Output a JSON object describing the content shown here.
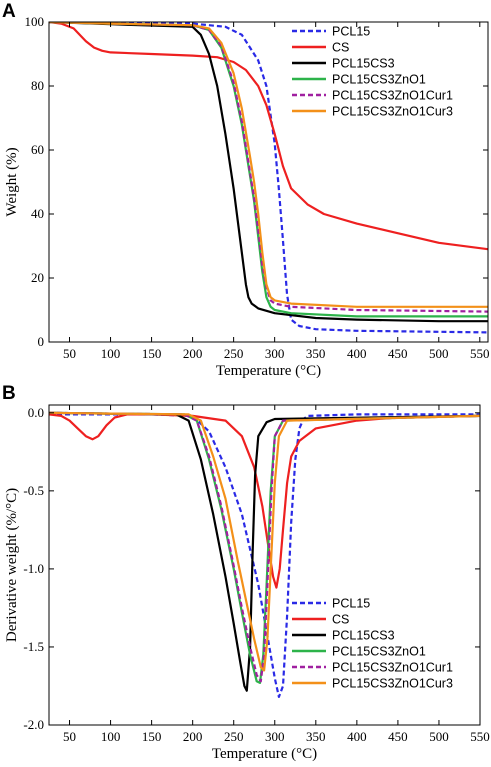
{
  "series_styles": [
    {
      "name": "PCL15",
      "color": "#2a2ae6",
      "dash": "5,3"
    },
    {
      "name": "CS",
      "color": "#ee2020",
      "dash": ""
    },
    {
      "name": "PCL15CS3",
      "color": "#000000",
      "dash": ""
    },
    {
      "name": "PCL15CS3ZnO1",
      "color": "#2db34a",
      "dash": ""
    },
    {
      "name": "PCL15CS3ZnO1Cur1",
      "color": "#a020a0",
      "dash": "5,3"
    },
    {
      "name": "PCL15CS3ZnO1Cur3",
      "color": "#f39019",
      "dash": ""
    }
  ],
  "chart_data": [
    {
      "panel": "A",
      "type": "line",
      "xlabel": "Temperature (°C)",
      "ylabel": "Weight (%)",
      "xlim": [
        25,
        560
      ],
      "ylim": [
        0,
        100
      ],
      "xticks": [
        50,
        100,
        150,
        200,
        250,
        300,
        350,
        400,
        450,
        500,
        550
      ],
      "yticks": [
        0,
        20,
        40,
        60,
        80,
        100
      ],
      "legend_position": "top-right",
      "series": [
        {
          "name": "PCL15",
          "x": [
            25,
            100,
            200,
            240,
            260,
            280,
            290,
            300,
            305,
            310,
            315,
            320,
            330,
            350,
            400,
            500,
            560
          ],
          "y": [
            100,
            99.8,
            99.5,
            98.5,
            96,
            88,
            80,
            62,
            48,
            32,
            15,
            7,
            5,
            4,
            3.5,
            3.2,
            3
          ]
        },
        {
          "name": "CS",
          "x": [
            25,
            40,
            55,
            70,
            80,
            90,
            100,
            150,
            200,
            230,
            250,
            265,
            280,
            290,
            300,
            310,
            320,
            340,
            360,
            400,
            450,
            500,
            560
          ],
          "y": [
            100,
            99.5,
            98,
            94,
            92,
            91,
            90.5,
            90,
            89.5,
            89,
            87.5,
            85,
            80,
            74,
            65,
            55,
            48,
            43,
            40,
            37,
            34,
            31,
            29
          ]
        },
        {
          "name": "PCL15CS3",
          "x": [
            25,
            100,
            200,
            210,
            220,
            230,
            240,
            250,
            255,
            260,
            265,
            268,
            272,
            280,
            300,
            350,
            400,
            500,
            560
          ],
          "y": [
            100,
            99.3,
            98.5,
            96,
            90,
            80,
            65,
            48,
            38,
            28,
            18,
            14,
            12,
            10.5,
            9,
            7.5,
            7,
            6.5,
            6.5
          ]
        },
        {
          "name": "PCL15CS3ZnO1",
          "x": [
            25,
            100,
            200,
            220,
            235,
            250,
            260,
            270,
            275,
            280,
            285,
            290,
            295,
            300,
            320,
            400,
            560
          ],
          "y": [
            100,
            99.5,
            99,
            97.5,
            92,
            80,
            68,
            52,
            44,
            33,
            22,
            14,
            11,
            10,
            9,
            8,
            8
          ]
        },
        {
          "name": "PCL15CS3ZnO1Cur1",
          "x": [
            25,
            100,
            200,
            220,
            235,
            250,
            260,
            270,
            275,
            280,
            285,
            290,
            295,
            300,
            320,
            400,
            560
          ],
          "y": [
            100,
            99.5,
            99,
            97.5,
            92.5,
            81,
            69,
            53,
            45,
            35,
            24,
            17,
            13,
            12,
            11,
            10,
            9.5
          ]
        },
        {
          "name": "PCL15CS3ZnO1Cur3",
          "x": [
            25,
            100,
            200,
            220,
            235,
            250,
            260,
            270,
            275,
            280,
            285,
            290,
            295,
            300,
            320,
            400,
            560
          ],
          "y": [
            100,
            99.5,
            99,
            98,
            93.5,
            84,
            73,
            58,
            50,
            40,
            28,
            18,
            14,
            13,
            12,
            11,
            11
          ]
        }
      ]
    },
    {
      "panel": "B",
      "type": "line",
      "xlabel": "Temperature (°C)",
      "ylabel": "Derivative weight (%/°C)",
      "xlim": [
        25,
        550
      ],
      "ylim": [
        -2.0,
        0.05
      ],
      "xticks": [
        50,
        100,
        150,
        200,
        250,
        300,
        350,
        400,
        450,
        500,
        550
      ],
      "yticks": [
        0.0,
        -0.5,
        -1.0,
        -1.5,
        -2.0
      ],
      "legend_position": "bottom-right",
      "series": [
        {
          "name": "PCL15",
          "x": [
            25,
            150,
            200,
            220,
            240,
            260,
            280,
            290,
            300,
            305,
            310,
            315,
            320,
            325,
            330,
            335,
            340,
            400,
            550
          ],
          "y": [
            -0.01,
            -0.01,
            -0.02,
            -0.12,
            -0.35,
            -0.65,
            -1.1,
            -1.4,
            -1.7,
            -1.82,
            -1.75,
            -1.3,
            -0.7,
            -0.3,
            -0.1,
            -0.04,
            -0.02,
            -0.01,
            -0.01
          ]
        },
        {
          "name": "CS",
          "x": [
            25,
            40,
            50,
            60,
            70,
            78,
            85,
            95,
            105,
            120,
            150,
            200,
            240,
            260,
            275,
            285,
            292,
            298,
            302,
            306,
            310,
            315,
            320,
            330,
            350,
            400,
            450,
            550
          ],
          "y": [
            -0.01,
            -0.02,
            -0.05,
            -0.1,
            -0.15,
            -0.17,
            -0.15,
            -0.08,
            -0.03,
            -0.01,
            -0.01,
            -0.02,
            -0.05,
            -0.15,
            -0.35,
            -0.6,
            -0.85,
            -1.05,
            -1.12,
            -1.0,
            -0.75,
            -0.45,
            -0.28,
            -0.18,
            -0.1,
            -0.05,
            -0.03,
            -0.02
          ]
        },
        {
          "name": "PCL15CS3",
          "x": [
            25,
            100,
            180,
            195,
            210,
            225,
            240,
            250,
            258,
            263,
            266,
            270,
            273,
            276,
            280,
            290,
            300,
            550
          ],
          "y": [
            0,
            -0.005,
            -0.01,
            -0.05,
            -0.3,
            -0.65,
            -1.05,
            -1.35,
            -1.6,
            -1.75,
            -1.78,
            -1.5,
            -0.9,
            -0.4,
            -0.15,
            -0.06,
            -0.04,
            -0.02
          ]
        },
        {
          "name": "PCL15CS3ZnO1",
          "x": [
            25,
            100,
            190,
            205,
            220,
            235,
            250,
            260,
            270,
            278,
            282,
            286,
            290,
            295,
            300,
            310,
            550
          ],
          "y": [
            0,
            -0.005,
            -0.01,
            -0.05,
            -0.3,
            -0.62,
            -1.0,
            -1.28,
            -1.55,
            -1.72,
            -1.73,
            -1.55,
            -1.1,
            -0.5,
            -0.15,
            -0.05,
            -0.02
          ]
        },
        {
          "name": "PCL15CS3ZnO1Cur1",
          "x": [
            25,
            100,
            190,
            205,
            220,
            235,
            250,
            260,
            270,
            278,
            283,
            287,
            291,
            296,
            300,
            310,
            550
          ],
          "y": [
            0,
            -0.005,
            -0.01,
            -0.05,
            -0.28,
            -0.6,
            -0.98,
            -1.25,
            -1.5,
            -1.68,
            -1.72,
            -1.55,
            -1.1,
            -0.5,
            -0.15,
            -0.05,
            -0.02
          ]
        },
        {
          "name": "PCL15CS3ZnO1Cur3",
          "x": [
            25,
            100,
            195,
            210,
            225,
            240,
            255,
            265,
            275,
            283,
            287,
            291,
            295,
            300,
            305,
            315,
            550
          ],
          "y": [
            0,
            -0.005,
            -0.01,
            -0.05,
            -0.28,
            -0.55,
            -0.95,
            -1.2,
            -1.45,
            -1.63,
            -1.65,
            -1.45,
            -1.0,
            -0.45,
            -0.15,
            -0.05,
            -0.02
          ]
        }
      ]
    }
  ],
  "legend": {
    "A": [
      "PCL15",
      "CS",
      "PCL15CS3",
      "PCL15CS3ZnO1",
      "PCL15CS3ZnO1Cur1",
      "PCL15CS3ZnO1Cur3"
    ],
    "B": [
      "PCL15",
      "CS",
      "PCL15CS3",
      "PCL15CS3ZnO1",
      "PCL15CS3ZnO1Cur1",
      "PCL15CS3ZnO1Cur3"
    ]
  }
}
